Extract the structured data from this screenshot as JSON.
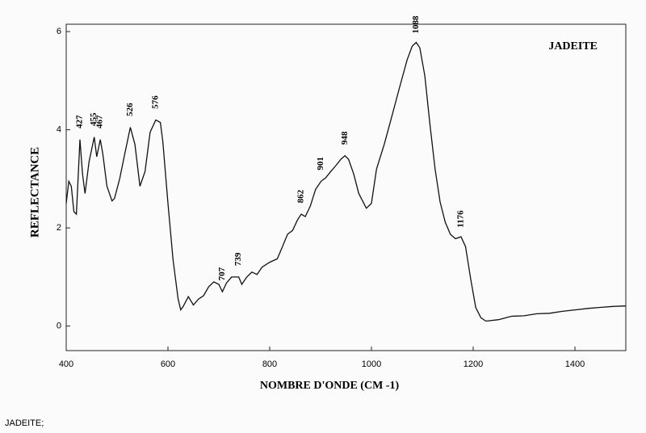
{
  "chart_data": {
    "type": "line",
    "title": "JADEITE",
    "xlabel": "NOMBRE D'ONDE (CM -1)",
    "ylabel": "REFLECTANCE",
    "caption": "JADEITE;",
    "x": [
      400,
      405,
      410,
      415,
      420,
      427,
      432,
      437,
      445,
      455,
      460,
      467,
      472,
      480,
      490,
      495,
      505,
      515,
      526,
      535,
      545,
      555,
      565,
      576,
      585,
      590,
      600,
      610,
      620,
      625,
      630,
      640,
      650,
      660,
      670,
      680,
      690,
      700,
      707,
      715,
      725,
      739,
      745,
      755,
      765,
      775,
      785,
      800,
      815,
      825,
      835,
      845,
      855,
      862,
      870,
      880,
      890,
      901,
      910,
      920,
      930,
      940,
      948,
      955,
      965,
      975,
      990,
      1000,
      1010,
      1025,
      1040,
      1055,
      1070,
      1080,
      1088,
      1095,
      1105,
      1115,
      1125,
      1135,
      1145,
      1155,
      1165,
      1176,
      1185,
      1195,
      1205,
      1215,
      1225,
      1250,
      1275,
      1300,
      1325,
      1350,
      1375,
      1400,
      1425,
      1450,
      1475,
      1500
    ],
    "series": [
      {
        "name": "JADEITE",
        "color": "#111111",
        "values": [
          2.5,
          2.95,
          2.85,
          2.33,
          2.28,
          3.8,
          3.1,
          2.7,
          3.35,
          3.85,
          3.45,
          3.8,
          3.5,
          2.85,
          2.55,
          2.6,
          3.0,
          3.5,
          4.05,
          3.7,
          2.85,
          3.15,
          3.95,
          4.2,
          4.15,
          3.75,
          2.5,
          1.35,
          0.55,
          0.33,
          0.4,
          0.6,
          0.43,
          0.55,
          0.62,
          0.8,
          0.9,
          0.85,
          0.7,
          0.88,
          1.0,
          1.0,
          0.85,
          1.0,
          1.1,
          1.05,
          1.2,
          1.3,
          1.37,
          1.62,
          1.87,
          1.95,
          2.17,
          2.28,
          2.23,
          2.45,
          2.78,
          2.95,
          3.02,
          3.15,
          3.27,
          3.4,
          3.47,
          3.4,
          3.1,
          2.7,
          2.4,
          2.5,
          3.2,
          3.7,
          4.27,
          4.85,
          5.42,
          5.7,
          5.78,
          5.67,
          5.1,
          4.1,
          3.2,
          2.53,
          2.12,
          1.87,
          1.78,
          1.82,
          1.62,
          0.96,
          0.38,
          0.17,
          0.1,
          0.13,
          0.2,
          0.21,
          0.25,
          0.26,
          0.3,
          0.33,
          0.36,
          0.38,
          0.4,
          0.41
        ]
      }
    ],
    "peak_labels": [
      427,
      455,
      467,
      526,
      576,
      707,
      739,
      862,
      901,
      948,
      1088,
      1176
    ],
    "xlim": [
      400,
      1500
    ],
    "ylim": [
      -0.5,
      6.15
    ],
    "xticks": [
      400,
      600,
      800,
      1000,
      1200,
      1400
    ],
    "yticks": [
      0,
      2,
      4,
      6
    ]
  }
}
